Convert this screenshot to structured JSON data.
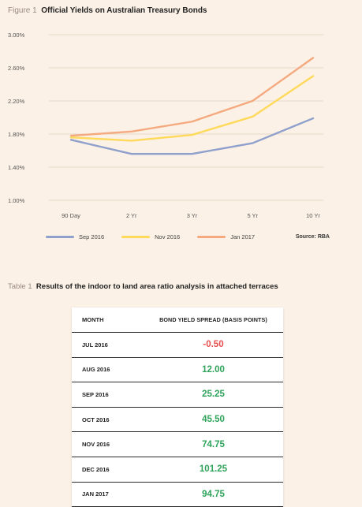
{
  "figure": {
    "tag": "Figure 1",
    "title": "Official Yields on Australian Treasury Bonds",
    "source": "Source: RBA"
  },
  "chart_data": {
    "type": "line",
    "categories": [
      "90 Day",
      "2 Yr",
      "3 Yr",
      "5 Yr",
      "10 Yr"
    ],
    "y_ticks": [
      "1.00%",
      "1.40%",
      "1.80%",
      "2.20%",
      "2.60%",
      "3.00%"
    ],
    "ylim": [
      1.0,
      3.0
    ],
    "grid": true,
    "legend_position": "bottom",
    "series": [
      {
        "name": "Sep 2016",
        "color": "#8fa0cc",
        "values": [
          1.73,
          1.56,
          1.56,
          1.69,
          1.99
        ]
      },
      {
        "name": "Nov 2016",
        "color": "#ffd95a",
        "values": [
          1.76,
          1.72,
          1.79,
          2.01,
          2.5
        ]
      },
      {
        "name": "Jan 2017",
        "color": "#f5a97f",
        "values": [
          1.78,
          1.83,
          1.95,
          2.2,
          2.72
        ]
      }
    ]
  },
  "table": {
    "tag": "Table 1",
    "title": "Results of the indoor to land area ratio analysis in attached terraces",
    "headers": [
      "MONTH",
      "BOND YIELD SPREAD (BASIS POINTS)"
    ],
    "rows": [
      {
        "month": "JUL 2016",
        "value": "-0.50",
        "status": "neg"
      },
      {
        "month": "AUG 2016",
        "value": "12.00",
        "status": "pos"
      },
      {
        "month": "SEP 2016",
        "value": "25.25",
        "status": "pos"
      },
      {
        "month": "OCT 2016",
        "value": "45.50",
        "status": "pos"
      },
      {
        "month": "NOV 2016",
        "value": "74.75",
        "status": "pos"
      },
      {
        "month": "DEC 2016",
        "value": "101.25",
        "status": "pos"
      },
      {
        "month": "JAN 2017",
        "value": "94.75",
        "status": "pos"
      }
    ]
  }
}
